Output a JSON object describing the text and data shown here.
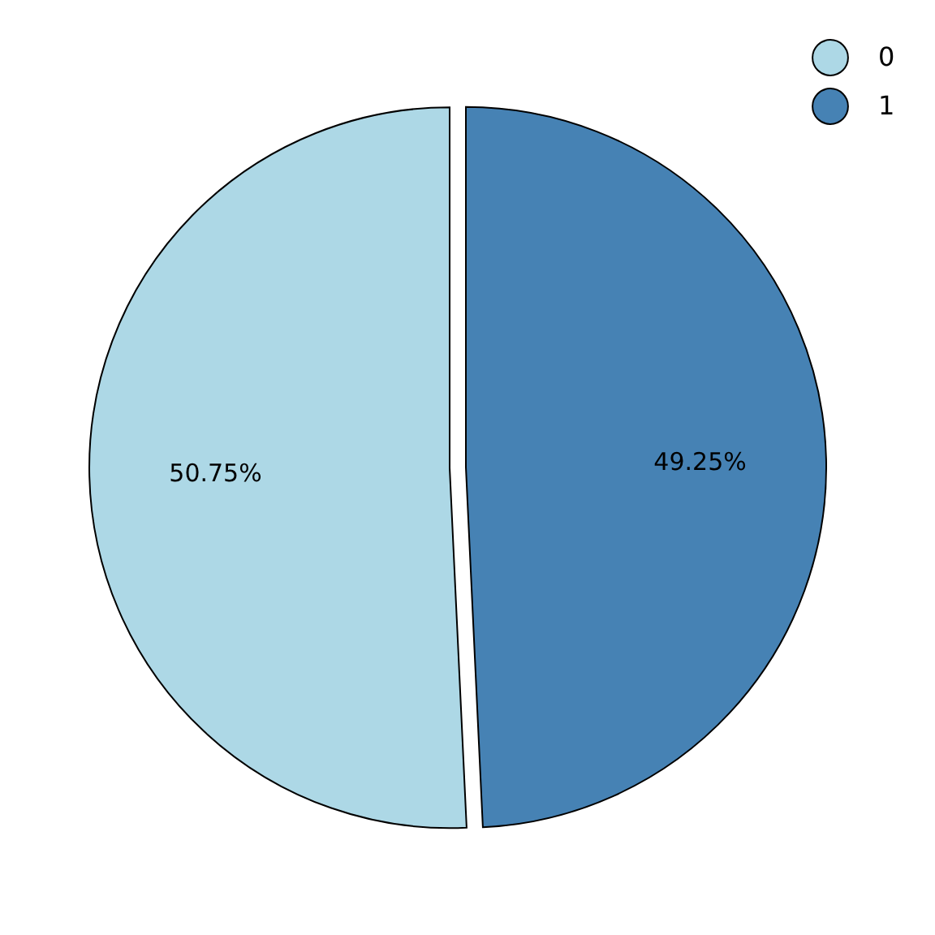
{
  "chart_data": {
    "type": "pie",
    "categories": [
      "0",
      "1"
    ],
    "values": [
      50.75,
      49.25
    ],
    "colors": [
      "#add8e6",
      "#4682b4"
    ],
    "value_labels": [
      "50.75%",
      "49.25%"
    ],
    "legend": "top right"
  }
}
